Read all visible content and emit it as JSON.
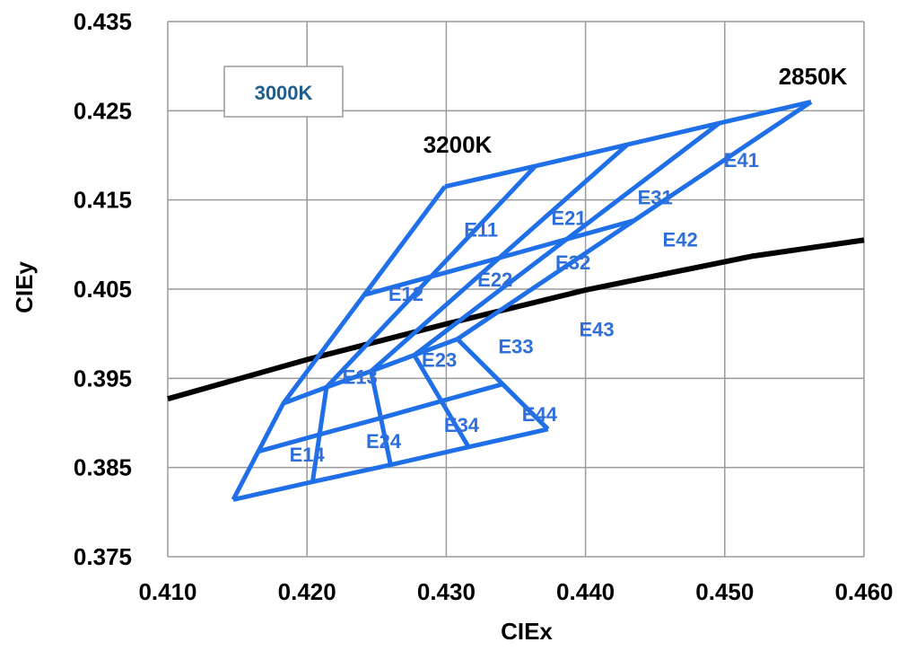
{
  "chart_data": {
    "type": "line",
    "xlabel": "CIEx",
    "ylabel": "CIEy",
    "xlim": [
      0.41,
      0.46
    ],
    "ylim": [
      0.375,
      0.435
    ],
    "x_ticks": [
      "0.410",
      "0.420",
      "0.430",
      "0.440",
      "0.450",
      "0.460"
    ],
    "y_ticks": [
      "0.435",
      "0.425",
      "0.415",
      "0.405",
      "0.395",
      "0.385",
      "0.375"
    ],
    "grid": true,
    "legend": {
      "label": "3000K",
      "placement": "top-left"
    },
    "annotations": {
      "label_3200k": "3200K",
      "label_2850k": "2850K"
    },
    "colors": {
      "blackbody": "#000000",
      "bins": "#1f6fe8",
      "bin_labels": "#2f6fdb",
      "legend_text": "#1f5f8f",
      "grid": "#9a9a9a"
    },
    "series": [
      {
        "kind": "blackbody_locus",
        "points": [
          [
            0.41,
            0.3927
          ],
          [
            0.42,
            0.3971
          ],
          [
            0.43,
            0.4011
          ],
          [
            0.44,
            0.4049
          ],
          [
            0.452,
            0.4087
          ],
          [
            0.46,
            0.4105
          ]
        ]
      },
      {
        "kind": "bin_grid",
        "nodes": [
          [
            [
              0.4299,
              0.4165
            ],
            [
              0.4364,
              0.4188
            ],
            [
              0.443,
              0.4212
            ],
            [
              0.4496,
              0.4236
            ],
            [
              0.4562,
              0.426
            ]
          ],
          [
            [
              0.4183,
              0.3922
            ],
            [
              0.4214,
              0.394
            ],
            [
              0.4246,
              0.3958
            ],
            [
              0.4277,
              0.3976
            ],
            [
              0.4308,
              0.3994
            ]
          ],
          [
            [
              0.4147,
              0.3814
            ],
            [
              0.4204,
              0.3834
            ],
            [
              0.426,
              0.3853
            ],
            [
              0.4316,
              0.3873
            ],
            [
              0.4373,
              0.3893
            ]
          ]
        ]
      }
    ],
    "bins": [
      {
        "name": "E11",
        "x": 0.4325,
        "y": 0.4117
      },
      {
        "name": "E12",
        "x": 0.4271,
        "y": 0.4045
      },
      {
        "name": "E13",
        "x": 0.4238,
        "y": 0.3952
      },
      {
        "name": "E14",
        "x": 0.42,
        "y": 0.3865
      },
      {
        "name": "E21",
        "x": 0.4388,
        "y": 0.413
      },
      {
        "name": "E22",
        "x": 0.4335,
        "y": 0.4061
      },
      {
        "name": "E23",
        "x": 0.4295,
        "y": 0.3971
      },
      {
        "name": "E24",
        "x": 0.4255,
        "y": 0.388
      },
      {
        "name": "E31",
        "x": 0.445,
        "y": 0.4153
      },
      {
        "name": "E32",
        "x": 0.4391,
        "y": 0.408
      },
      {
        "name": "E33",
        "x": 0.435,
        "y": 0.3986
      },
      {
        "name": "E34",
        "x": 0.4311,
        "y": 0.3898
      },
      {
        "name": "E41",
        "x": 0.4512,
        "y": 0.4195
      },
      {
        "name": "E42",
        "x": 0.4468,
        "y": 0.4106
      },
      {
        "name": "E43",
        "x": 0.4408,
        "y": 0.4005
      },
      {
        "name": "E44",
        "x": 0.4367,
        "y": 0.391
      }
    ]
  }
}
